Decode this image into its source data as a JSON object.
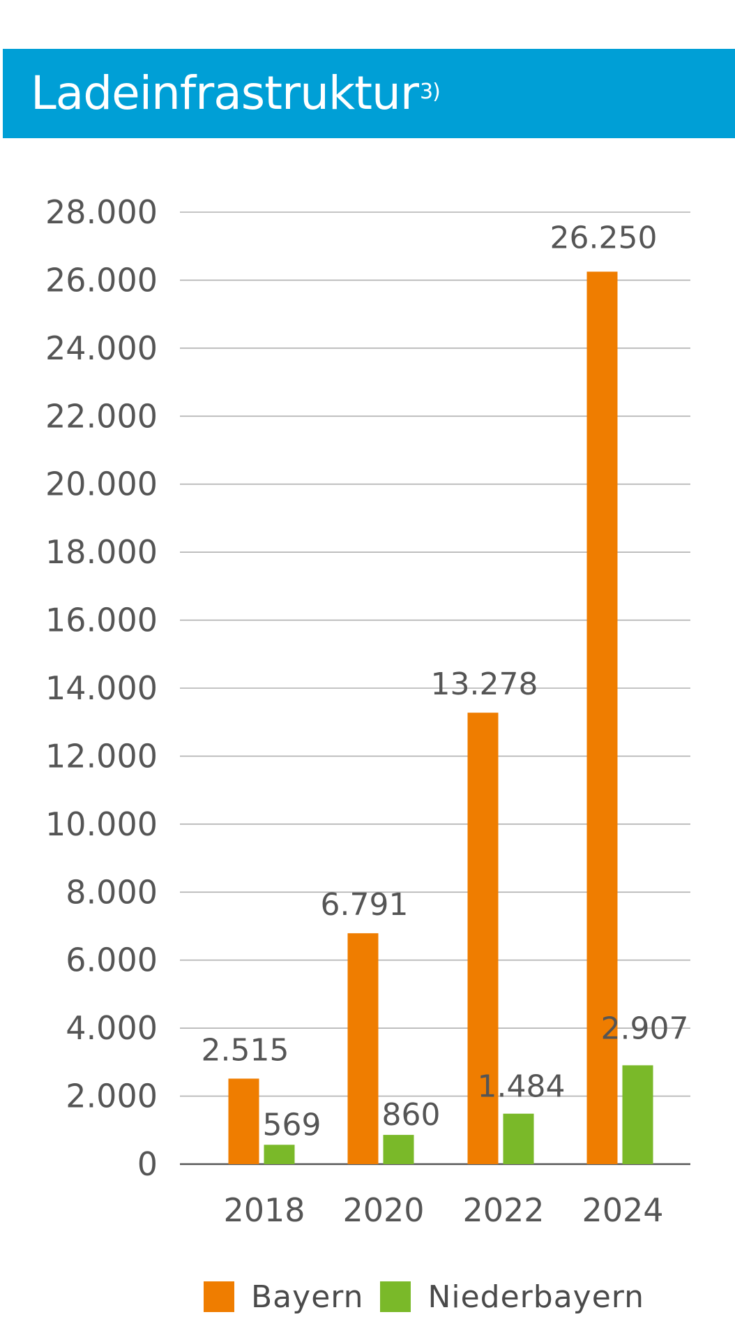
{
  "header": {
    "title": "Ladeinfrastruktur",
    "footnote": "3)",
    "background": "#009fd6"
  },
  "chart_data": {
    "type": "bar",
    "categories": [
      "2018",
      "2020",
      "2022",
      "2024"
    ],
    "series": [
      {
        "name": "Bayern",
        "color": "#ef7d00",
        "values": [
          2515,
          6791,
          13278,
          26250
        ],
        "labels": [
          "2.515",
          "6.791",
          "13.278",
          "26.250"
        ]
      },
      {
        "name": "Niederbayern",
        "color": "#7ab929",
        "values": [
          569,
          860,
          1484,
          2907
        ],
        "labels": [
          "569",
          "860",
          "1.484",
          "2.907"
        ]
      }
    ],
    "ylim": [
      0,
      28000
    ],
    "yticks": [
      0,
      2000,
      4000,
      6000,
      8000,
      10000,
      12000,
      14000,
      16000,
      18000,
      20000,
      22000,
      24000,
      26000,
      28000
    ],
    "ytick_labels": [
      "0",
      "2.000",
      "4.000",
      "6.000",
      "8.000",
      "10.000",
      "12.000",
      "14.000",
      "16.000",
      "18.000",
      "20.000",
      "22.000",
      "24.000",
      "26.000",
      "28.000"
    ],
    "grid": true,
    "legend_position": "bottom"
  },
  "legend": [
    {
      "label": "Bayern",
      "color": "#ef7d00"
    },
    {
      "label": "Niederbayern",
      "color": "#7ab929"
    }
  ]
}
